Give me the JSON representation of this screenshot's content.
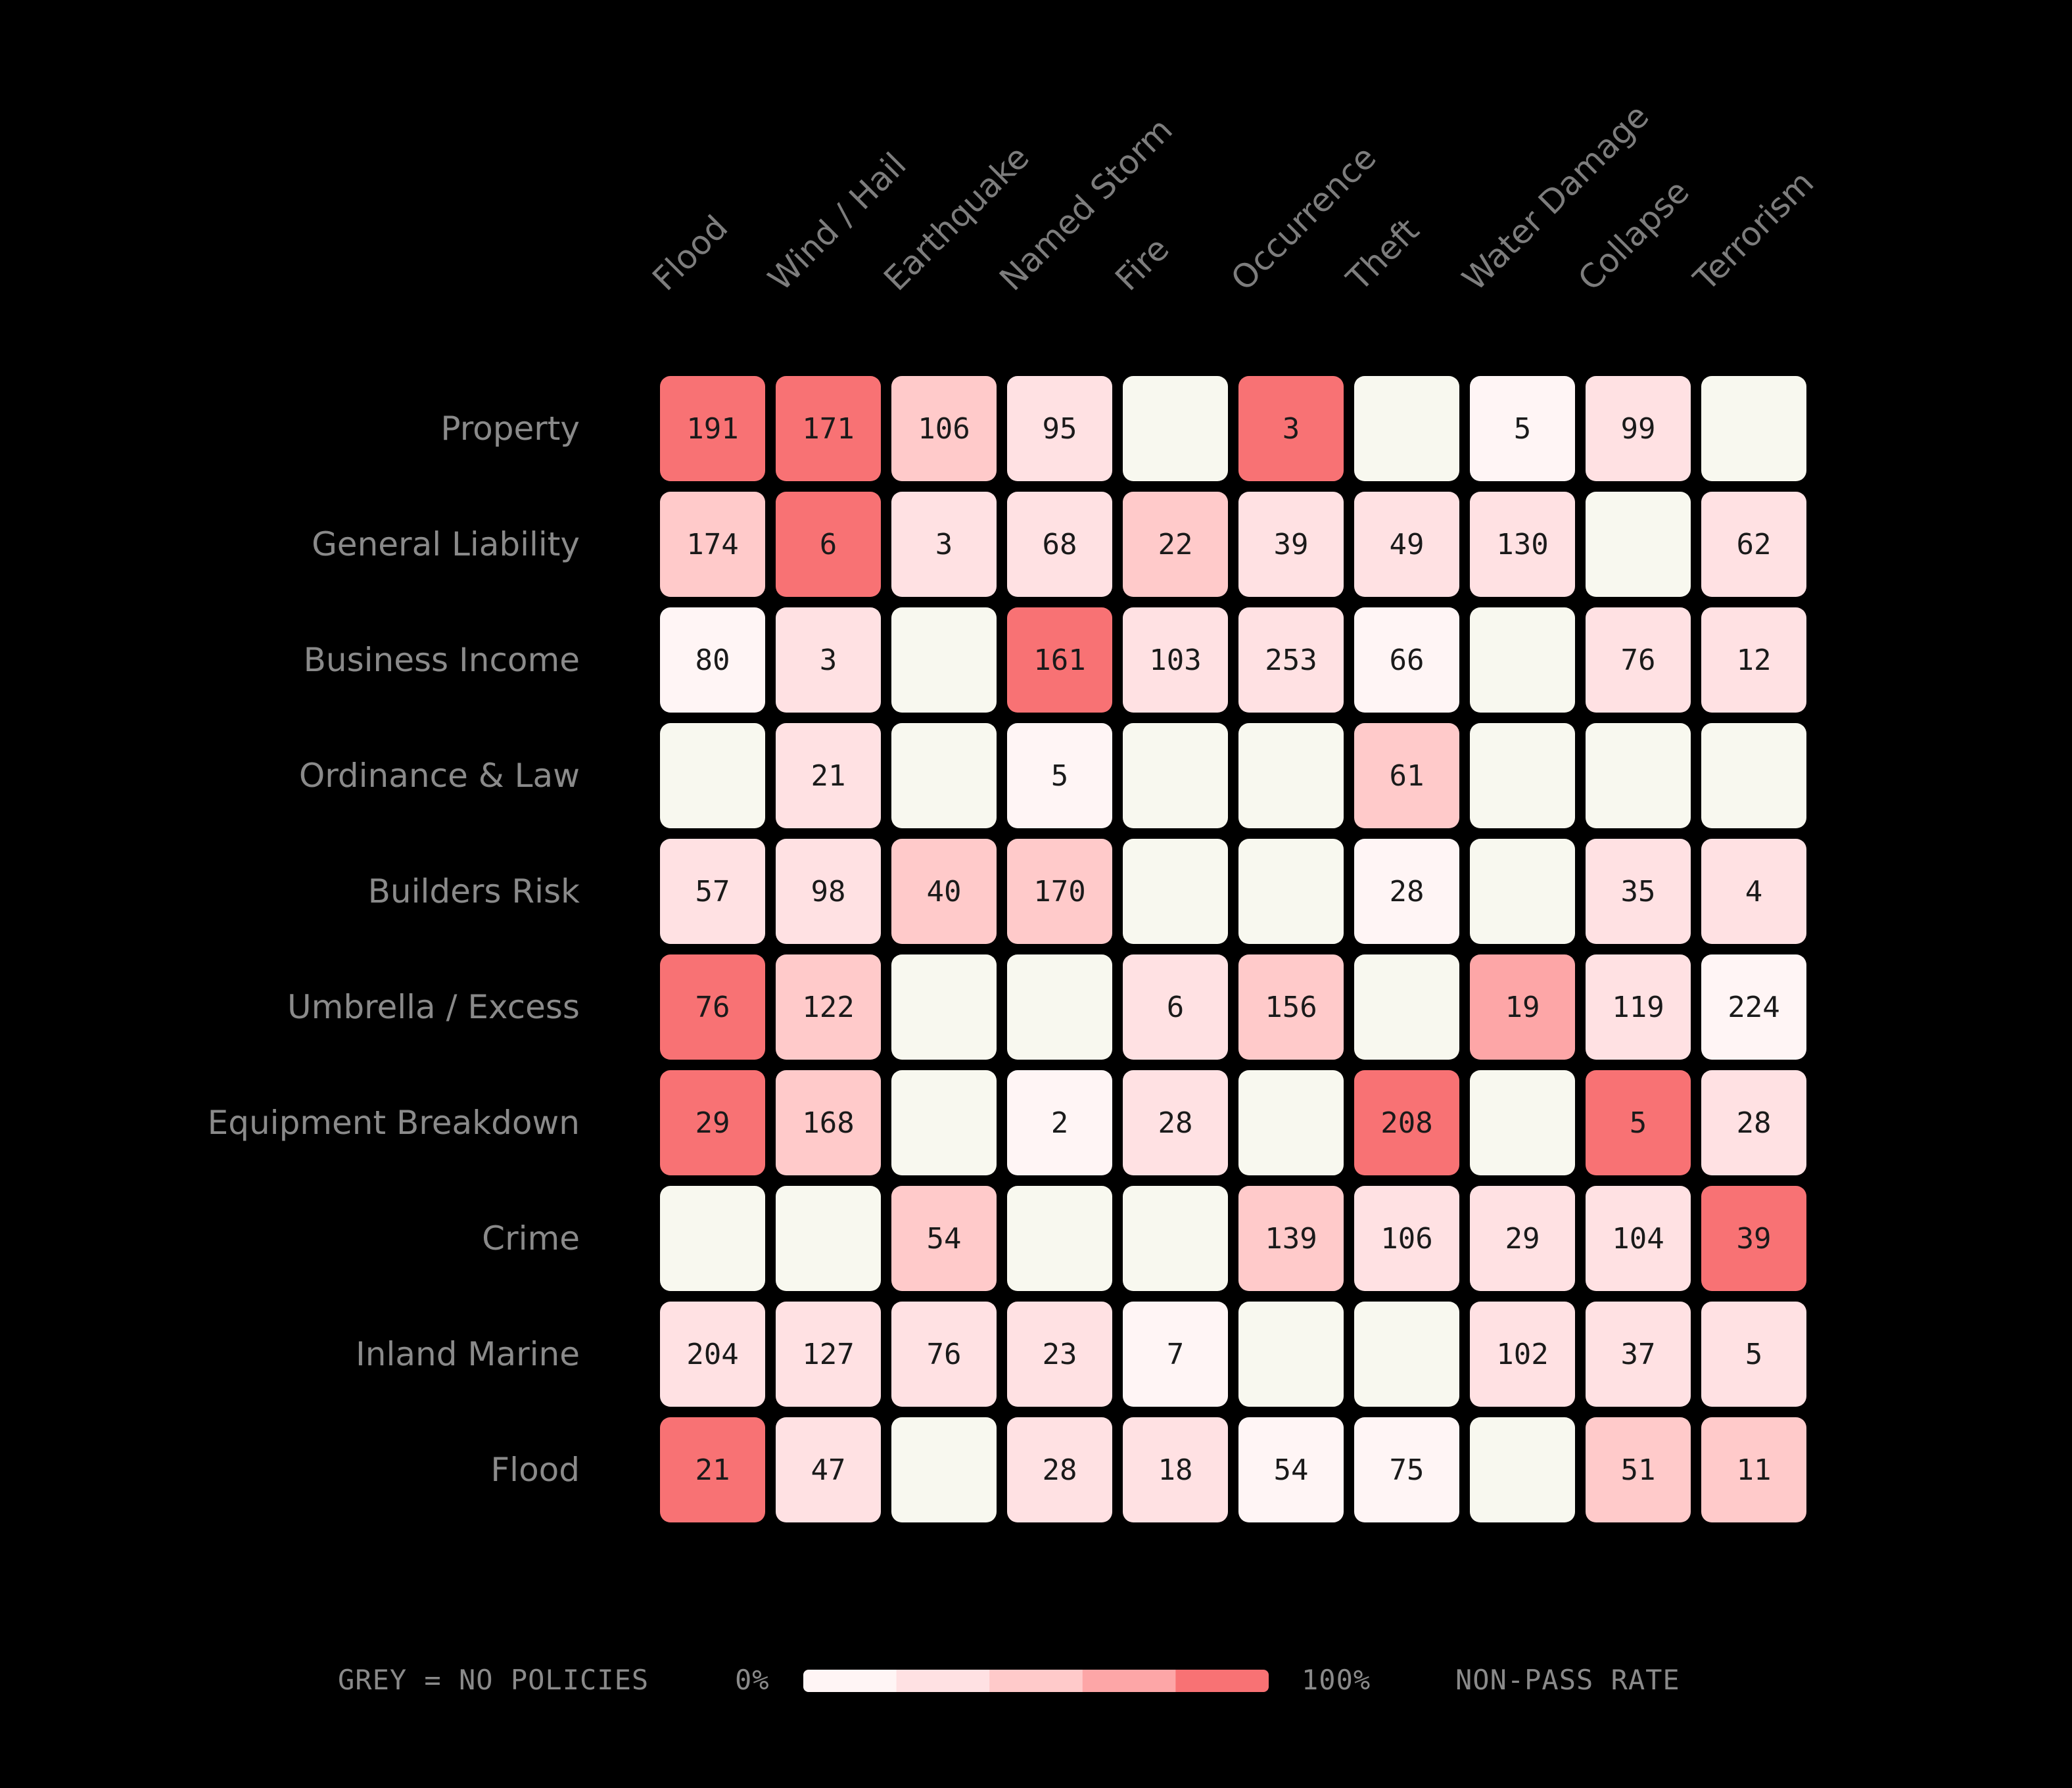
{
  "chart_data": {
    "type": "heatmap",
    "columns": [
      "Flood",
      "Wind / Hail",
      "Earthquake",
      "Named Storm",
      "Fire",
      "Occurrence",
      "Theft",
      "Water Damage",
      "Collapse",
      "Terrorism"
    ],
    "rows": [
      "Property",
      "General Liability",
      "Business Income",
      "Ordinance & Law",
      "Builders Risk",
      "Umbrella / Excess",
      "Equipment Breakdown",
      "Crime",
      "Inland Marine",
      "Flood"
    ],
    "values": [
      [
        191,
        171,
        106,
        95,
        null,
        3,
        null,
        5,
        99,
        null
      ],
      [
        174,
        6,
        3,
        68,
        22,
        39,
        49,
        130,
        null,
        62
      ],
      [
        80,
        3,
        null,
        161,
        103,
        253,
        66,
        null,
        76,
        12
      ],
      [
        null,
        21,
        null,
        5,
        null,
        null,
        61,
        null,
        null,
        null
      ],
      [
        57,
        98,
        40,
        170,
        null,
        null,
        28,
        null,
        35,
        4
      ],
      [
        76,
        122,
        null,
        null,
        6,
        156,
        null,
        19,
        119,
        224
      ],
      [
        29,
        168,
        null,
        2,
        28,
        null,
        208,
        null,
        5,
        28
      ],
      [
        null,
        null,
        54,
        null,
        null,
        139,
        106,
        29,
        104,
        39
      ],
      [
        204,
        127,
        76,
        23,
        7,
        null,
        null,
        102,
        37,
        5
      ],
      [
        21,
        47,
        null,
        28,
        18,
        54,
        75,
        null,
        51,
        11
      ]
    ],
    "non_pass_rate_bucket": [
      [
        5,
        5,
        3,
        2,
        null,
        5,
        null,
        1,
        2,
        null
      ],
      [
        3,
        5,
        2,
        2,
        3,
        2,
        2,
        2,
        null,
        2
      ],
      [
        1,
        2,
        null,
        5,
        2,
        2,
        1,
        null,
        2,
        2
      ],
      [
        null,
        2,
        null,
        1,
        null,
        null,
        3,
        null,
        null,
        null
      ],
      [
        2,
        2,
        3,
        3,
        null,
        null,
        1,
        null,
        2,
        2
      ],
      [
        5,
        3,
        null,
        null,
        2,
        3,
        null,
        4,
        2,
        1
      ],
      [
        5,
        3,
        null,
        1,
        2,
        null,
        5,
        null,
        5,
        2
      ],
      [
        null,
        null,
        3,
        null,
        null,
        3,
        2,
        2,
        2,
        5
      ],
      [
        2,
        2,
        2,
        2,
        1,
        null,
        null,
        2,
        2,
        2
      ],
      [
        5,
        2,
        null,
        2,
        2,
        1,
        1,
        null,
        3,
        3
      ]
    ],
    "color_scale": {
      "no_policy_color": "#f8f8ef",
      "stops": [
        "#fff5f5",
        "#ffe1e3",
        "#ffcaca",
        "#fda6a7",
        "#f87274"
      ],
      "min_label": "0%",
      "max_label": "100%"
    },
    "legend": {
      "grey_label": "GREY = NO POLICIES",
      "metric_label": "NON-PASS RATE"
    }
  }
}
